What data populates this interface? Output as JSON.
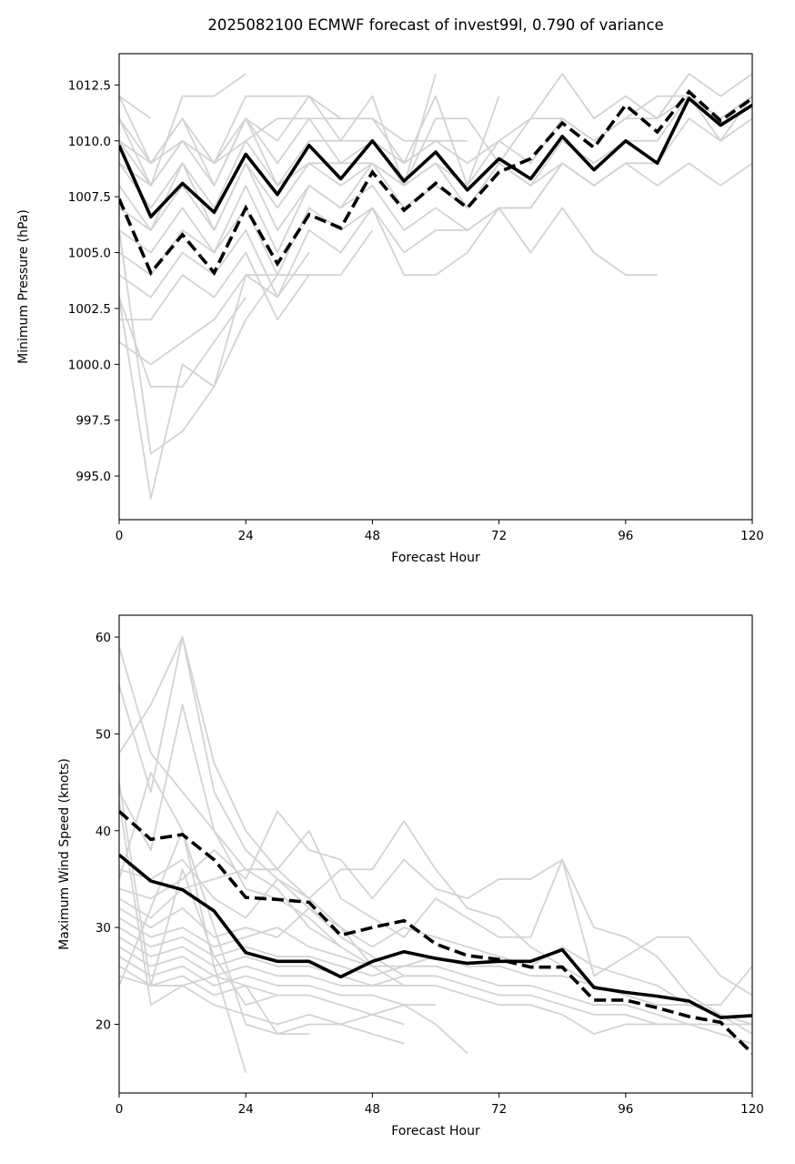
{
  "chart_data": [
    {
      "type": "line",
      "title": "2025082100 ECMWF forecast of invest99l, 0.790 of variance",
      "xlabel": "Forecast Hour",
      "ylabel": "Minimum Pressure (hPa)",
      "xlim": [
        0,
        120
      ],
      "ylim": [
        993.05,
        1013.9
      ],
      "xticks": [
        0,
        24,
        48,
        72,
        96,
        120
      ],
      "xtick_labels": [
        "0",
        "24",
        "48",
        "72",
        "96",
        "120"
      ],
      "yticks": [
        995.0,
        997.5,
        1000.0,
        1002.5,
        1005.0,
        1007.5,
        1010.0,
        1012.5
      ],
      "ytick_labels": [
        "995.0",
        "997.5",
        "1000.0",
        "1002.5",
        "1005.0",
        "1007.5",
        "1010.0",
        "1012.5"
      ],
      "grid": false,
      "x": [
        0,
        6,
        12,
        18,
        24,
        30,
        36,
        42,
        48,
        54,
        60,
        66,
        72,
        78,
        84,
        90,
        96,
        102,
        108,
        114,
        120
      ],
      "series": [
        {
          "name": "ensemble-mean",
          "style": "solid",
          "color": "#000000",
          "values": [
            1009.8,
            1006.6,
            1008.1,
            1006.8,
            1009.4,
            1007.6,
            1009.8,
            1008.3,
            1010.0,
            1008.2,
            1009.5,
            1007.8,
            1009.2,
            1008.3,
            1010.2,
            1008.7,
            1010.0,
            1009.0,
            1011.9,
            1010.7,
            1011.6
          ]
        },
        {
          "name": "weighted-mean",
          "style": "dashed",
          "color": "#000000",
          "values": [
            1007.4,
            1004.1,
            1005.8,
            1004.1,
            1007.0,
            1004.5,
            1006.7,
            1006.1,
            1008.6,
            1006.9,
            1008.1,
            1007.0,
            1008.6,
            1009.2,
            1010.8,
            1009.7,
            1011.6,
            1010.4,
            1012.2,
            1010.9,
            1011.9
          ]
        }
      ],
      "members": {
        "color": "#d3d3d3",
        "series": [
          [
            1012,
            1011
          ],
          [
            1011,
            1008,
            1012,
            1012,
            1013
          ],
          [
            1010,
            1008,
            1010,
            1009,
            1012,
            1012,
            1012,
            1011,
            1011,
            1010,
            1010,
            1010
          ],
          [
            1012,
            1009,
            1011,
            1009,
            1011,
            1010,
            1012,
            1010,
            1012,
            1008,
            1013
          ],
          [
            1011,
            1009,
            1011,
            1008,
            1011,
            1009,
            1011,
            1011,
            1011,
            1009,
            1012,
            1008,
            1012
          ],
          [
            1010,
            1009,
            1010,
            1009,
            1010,
            1011,
            1011,
            1009,
            1010,
            1008,
            1011,
            1011,
            1009,
            1011,
            1013,
            1011,
            1012,
            1011,
            1013,
            1012,
            1013
          ],
          [
            1009,
            1008,
            1010,
            1008,
            1011,
            1008,
            1010,
            1010,
            1010,
            1009,
            1010,
            1009,
            1010,
            1011,
            1011,
            1010,
            1011,
            1012,
            1012,
            1011,
            1012
          ],
          [
            1009,
            1007,
            1009,
            1007,
            1010,
            1008,
            1009,
            1008,
            1009,
            1008,
            1009,
            1008,
            1010,
            1009,
            1011,
            1010,
            1011,
            1011,
            1012,
            1011,
            1012
          ],
          [
            1008,
            1006,
            1009,
            1006,
            1009,
            1007,
            1009,
            1009,
            1009,
            1008,
            1009,
            1007,
            1009,
            1008,
            1010,
            1009,
            1010,
            1010,
            1012,
            1010,
            1012
          ],
          [
            1007,
            1006,
            1008,
            1006,
            1009,
            1006,
            1008,
            1007,
            1009,
            1007,
            1008,
            1007,
            1009,
            1008,
            1009,
            1008,
            1009,
            1009,
            1011,
            1010,
            1011
          ],
          [
            1006,
            1005,
            1007,
            1005,
            1008,
            1005,
            1008,
            1007,
            1008,
            1006,
            1007,
            1006,
            1007,
            1007,
            1009,
            1008,
            1009,
            1008,
            1009,
            1008,
            1009
          ],
          [
            1005,
            1004,
            1006,
            1005,
            1007,
            1004,
            1007,
            1006,
            1007,
            1005,
            1006,
            1006,
            1007,
            1005,
            1007,
            1005,
            1004,
            1004
          ],
          [
            1004,
            1003,
            1005,
            1004,
            1006,
            1003,
            1006,
            1005,
            1007,
            1004,
            1004,
            1005,
            1007,
            1007,
            1009,
            1008,
            1009
          ],
          [
            1002,
            1002,
            1004,
            1003,
            1005,
            1002,
            1004,
            1004,
            1006
          ],
          [
            1001,
            1000,
            1001,
            1002,
            1004,
            1003,
            1005
          ],
          [
            1003,
            999,
            999,
            1001,
            1003
          ],
          [
            1006,
            996,
            997,
            999,
            1004,
            1004,
            1004
          ],
          [
            1003,
            994,
            1000,
            999,
            1002,
            1004
          ]
        ]
      }
    },
    {
      "type": "line",
      "title": "",
      "xlabel": "Forecast Hour",
      "ylabel": "Maximum Wind Speed (knots)",
      "xlim": [
        0,
        120
      ],
      "ylim": [
        12.9,
        62.26
      ],
      "xticks": [
        0,
        24,
        48,
        72,
        96,
        120
      ],
      "xtick_labels": [
        "0",
        "24",
        "48",
        "72",
        "96",
        "120"
      ],
      "yticks": [
        20,
        30,
        40,
        50,
        60
      ],
      "ytick_labels": [
        "20",
        "30",
        "40",
        "50",
        "60"
      ],
      "grid": false,
      "x": [
        0,
        6,
        12,
        18,
        24,
        30,
        36,
        42,
        48,
        54,
        60,
        66,
        72,
        78,
        84,
        90,
        96,
        102,
        108,
        114,
        120
      ],
      "series": [
        {
          "name": "ensemble-mean",
          "style": "solid",
          "color": "#000000",
          "values": [
            37.5,
            34.8,
            33.9,
            31.7,
            27.4,
            26.5,
            26.5,
            24.9,
            26.5,
            27.5,
            26.8,
            26.3,
            26.5,
            26.5,
            27.7,
            23.8,
            23.3,
            22.9,
            22.4,
            20.7,
            20.9
          ]
        },
        {
          "name": "weighted-mean",
          "style": "dashed",
          "color": "#000000",
          "values": [
            42.0,
            39.1,
            39.6,
            37.0,
            33.1,
            32.9,
            32.6,
            29.2,
            30.0,
            30.7,
            28.3,
            27.1,
            26.7,
            25.9,
            25.9,
            22.5,
            22.5,
            21.7,
            20.8,
            20.2,
            17.0
          ]
        }
      ],
      "members": {
        "color": "#d3d3d3",
        "series": [
          [
            59,
            48,
            44,
            40,
            36,
            34,
            30,
            28
          ],
          [
            55,
            44,
            60,
            47,
            40,
            36,
            33,
            30,
            26,
            24
          ],
          [
            48,
            53,
            60,
            44,
            38,
            35,
            32,
            29,
            27,
            25
          ],
          [
            44,
            38,
            53,
            40,
            34,
            33,
            31,
            28,
            26
          ],
          [
            36,
            35,
            37,
            33,
            31,
            35,
            33,
            36,
            36,
            41,
            36,
            32,
            31,
            28,
            26,
            24
          ],
          [
            34,
            33,
            35,
            38,
            35,
            42,
            38,
            37,
            33,
            37,
            34,
            33,
            35,
            35,
            37,
            30,
            29,
            27,
            23,
            21,
            20
          ],
          [
            33,
            31,
            34,
            35,
            36,
            36,
            40,
            33,
            31,
            29,
            33,
            31,
            29,
            29,
            37,
            25,
            27,
            29,
            29,
            25,
            23
          ],
          [
            32,
            30,
            32,
            29,
            30,
            29,
            32,
            30,
            28,
            30,
            29,
            28,
            27,
            26,
            28,
            26,
            25,
            24,
            22,
            22,
            26
          ],
          [
            31,
            29,
            30,
            28,
            29,
            30,
            28,
            27,
            26,
            26,
            27,
            26,
            26,
            25,
            25,
            24,
            23,
            22,
            22,
            21,
            19
          ],
          [
            30,
            28,
            29,
            27,
            28,
            27,
            27,
            26,
            25,
            26,
            26,
            25,
            24,
            24,
            23,
            22,
            22,
            21,
            20,
            20,
            20
          ],
          [
            29,
            27,
            28,
            26,
            27,
            26,
            26,
            25,
            24,
            25,
            25,
            24,
            23,
            23,
            22,
            21,
            21,
            20,
            20,
            19,
            18
          ],
          [
            28,
            26,
            27,
            25,
            26,
            25,
            25,
            24,
            24,
            24,
            24,
            23,
            22,
            22,
            21,
            19,
            20,
            20,
            20
          ],
          [
            27,
            25,
            26,
            24,
            25,
            24,
            24,
            23,
            23,
            22,
            22
          ],
          [
            26,
            24,
            25,
            23,
            24,
            23,
            23,
            22,
            21,
            20
          ],
          [
            25,
            24,
            24,
            22,
            21,
            20,
            21,
            20,
            19,
            18
          ],
          [
            24,
            32,
            40,
            30,
            20,
            19,
            20,
            20,
            21,
            22,
            20,
            17
          ],
          [
            45,
            24,
            36,
            27,
            22,
            23
          ],
          [
            43,
            22,
            24,
            25,
            24,
            19,
            19
          ],
          [
            35,
            46,
            40,
            26,
            15
          ]
        ]
      }
    }
  ]
}
